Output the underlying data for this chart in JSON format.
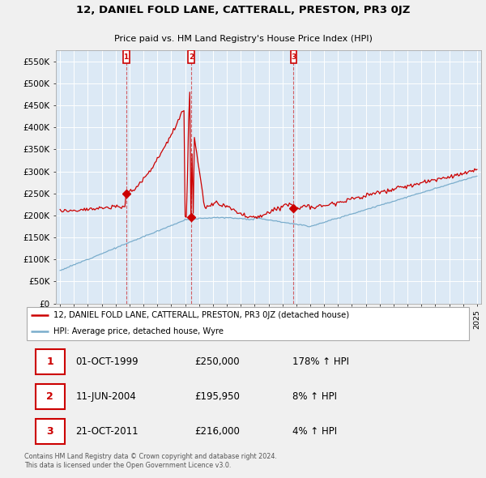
{
  "title": "12, DANIEL FOLD LANE, CATTERALL, PRESTON, PR3 0JZ",
  "subtitle": "Price paid vs. HM Land Registry's House Price Index (HPI)",
  "ylim": [
    0,
    575000
  ],
  "yticks": [
    0,
    50000,
    100000,
    150000,
    200000,
    250000,
    300000,
    350000,
    400000,
    450000,
    500000,
    550000
  ],
  "ytick_labels": [
    "£0",
    "£50K",
    "£100K",
    "£150K",
    "£200K",
    "£250K",
    "£300K",
    "£350K",
    "£400K",
    "£450K",
    "£500K",
    "£550K"
  ],
  "xlim_start": 1994.7,
  "xlim_end": 2025.3,
  "sales": [
    {
      "date": 1999.75,
      "price": 250000,
      "label": "1"
    },
    {
      "date": 2004.44,
      "price": 195950,
      "label": "2"
    },
    {
      "date": 2011.8,
      "price": 216000,
      "label": "3"
    }
  ],
  "sale_info": [
    {
      "num": "1",
      "date": "01-OCT-1999",
      "price": "£250,000",
      "hpi": "178% ↑ HPI"
    },
    {
      "num": "2",
      "date": "11-JUN-2004",
      "price": "£195,950",
      "hpi": "8% ↑ HPI"
    },
    {
      "num": "3",
      "date": "21-OCT-2011",
      "price": "£216,000",
      "hpi": "4% ↑ HPI"
    }
  ],
  "legend_entries": [
    {
      "label": "12, DANIEL FOLD LANE, CATTERALL, PRESTON, PR3 0JZ (detached house)",
      "color": "#cc0000"
    },
    {
      "label": "HPI: Average price, detached house, Wyre",
      "color": "#7aadcc"
    }
  ],
  "footnote": "Contains HM Land Registry data © Crown copyright and database right 2024.\nThis data is licensed under the Open Government Licence v3.0.",
  "red_color": "#cc0000",
  "blue_color": "#7aadcc",
  "plot_bg_color": "#dce9f5",
  "bg_color": "#f0f0f0",
  "grid_color": "#ffffff"
}
